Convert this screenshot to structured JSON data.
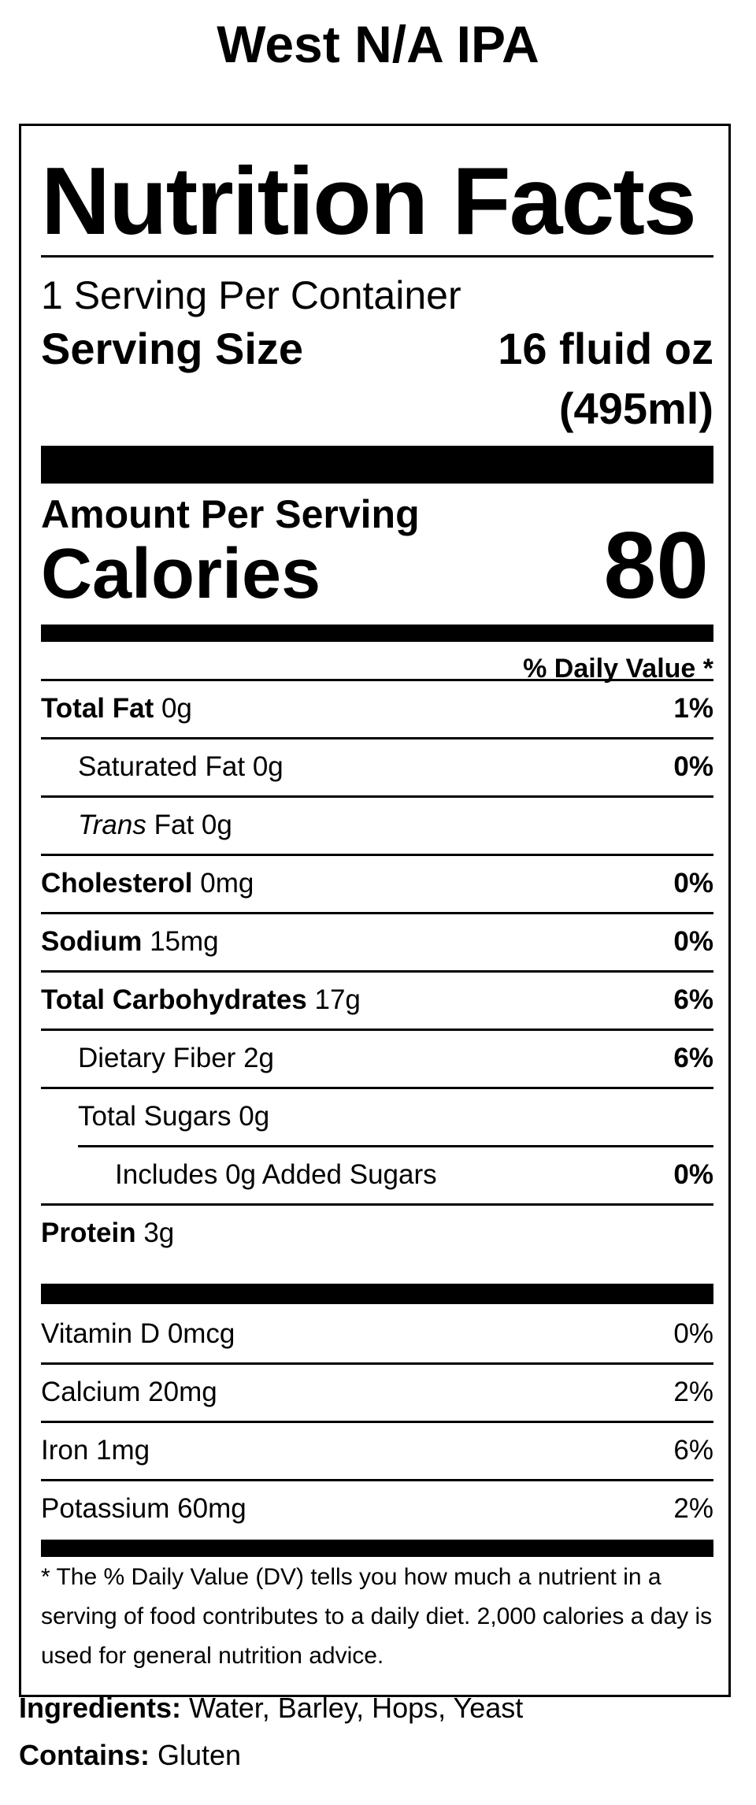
{
  "product_name": "West N/A IPA",
  "label": {
    "heading": "Nutrition Facts",
    "servings_per_container": "1 Serving Per Container",
    "serving_size_label": "Serving Size",
    "serving_size_value_1": "16 fluid oz",
    "serving_size_value_2": "(495ml)",
    "amount_per_serving": "Amount Per Serving",
    "calories_label": "Calories",
    "calories_value": "80",
    "daily_value_header": "% Daily Value *",
    "nutrients": [
      {
        "bold_name": "Total Fat",
        "amount": "0g",
        "dv": "1%"
      },
      {
        "name": "Saturated Fat",
        "amount": "0g",
        "dv": "0%"
      },
      {
        "italic_name": "Trans",
        "name": "Fat",
        "amount": "0g",
        "dv": ""
      },
      {
        "bold_name": "Cholesterol",
        "amount": "0mg",
        "dv": "0%"
      },
      {
        "bold_name": "Sodium",
        "amount": "15mg",
        "dv": "0%"
      },
      {
        "bold_name": "Total Carbohydrates",
        "amount": "17g",
        "dv": "6%"
      },
      {
        "name": "Dietary Fiber",
        "amount": "2g",
        "dv": "6%"
      },
      {
        "name": "Total Sugars",
        "amount": "0g",
        "dv": ""
      },
      {
        "name": "Includes 0g Added Sugars",
        "amount": "",
        "dv": "0%"
      },
      {
        "bold_name": "Protein",
        "amount": "3g",
        "dv": ""
      }
    ],
    "vitamins": [
      {
        "name": "Vitamin D",
        "amount": "0mcg",
        "dv": "0%"
      },
      {
        "name": "Calcium",
        "amount": "20mg",
        "dv": "2%"
      },
      {
        "name": "Iron",
        "amount": "1mg",
        "dv": "6%"
      },
      {
        "name": "Potassium",
        "amount": "60mg",
        "dv": "2%"
      }
    ],
    "footnote": "* The % Daily Value (DV) tells you how much a nutrient in a serving of food contributes to a daily diet. 2,000 calories a day is used for general nutrition advice."
  },
  "ingredients": {
    "label": "Ingredients:",
    "text": "Water, Barley, Hops, Yeast"
  },
  "contains": {
    "label": "Contains:",
    "text": "Gluten"
  }
}
